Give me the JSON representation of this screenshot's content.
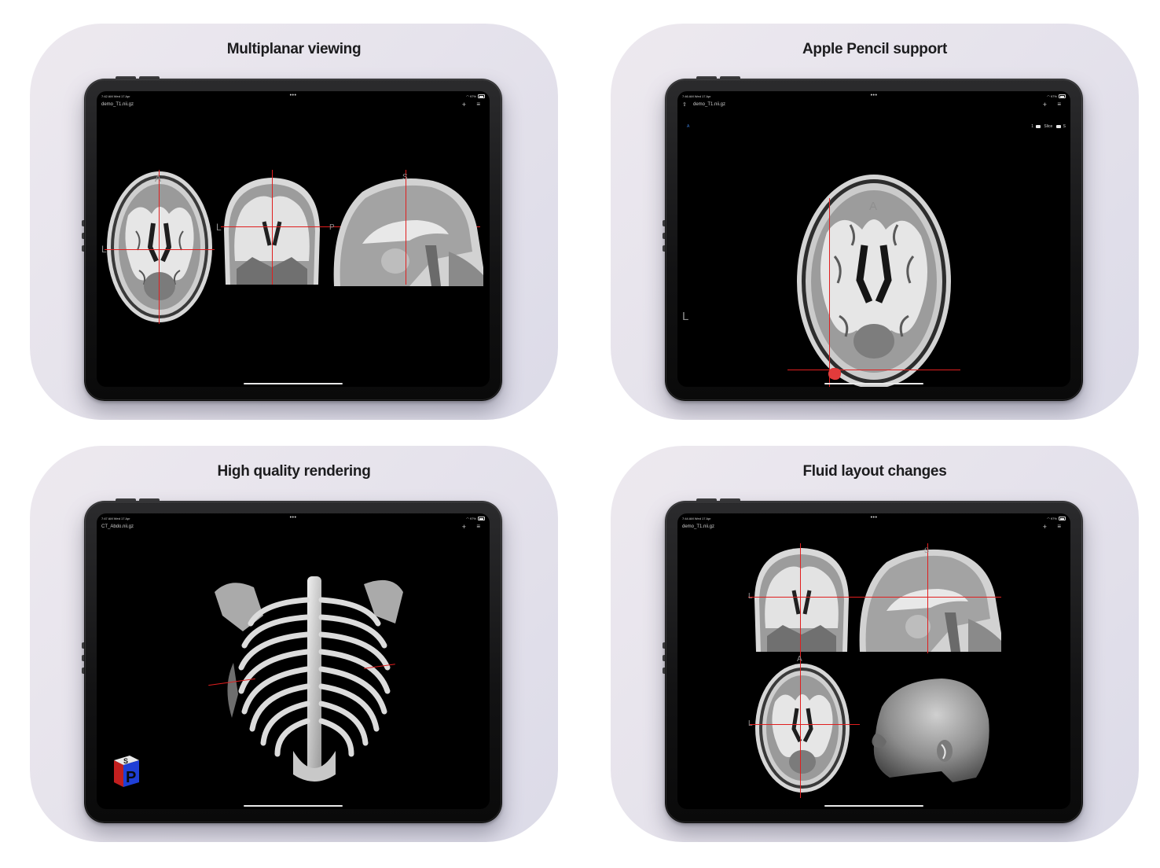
{
  "cards": [
    {
      "title": "Multiplanar viewing",
      "status": {
        "time": "7:42 AM  Wed 17 Apr",
        "dots": "•••",
        "battery": "97%"
      },
      "filename": "demo_T1.nii.gz",
      "plus_label": "+",
      "menu_label": "≡",
      "orient": {
        "axial_a": "A",
        "axial_l": "L",
        "coronal_l": "L",
        "sagittal_s": "S",
        "sagittal_p": "P"
      }
    },
    {
      "title": "Apple Pencil support",
      "status": {
        "time": "7:46 AM  Wed 17 Apr",
        "dots": "•••",
        "battery": "97%"
      },
      "filename": "demo_T1.nii.gz",
      "plus_label": "+",
      "menu_label": "≡",
      "share_label": "⇧",
      "toolbar": {
        "left": "A",
        "slice_label": "Slice",
        "s_label": "S",
        "one_label": "1"
      },
      "orient": {
        "a": "A",
        "l": "L"
      }
    },
    {
      "title": "High quality rendering",
      "status": {
        "time": "7:47 AM  Wed 17 Apr",
        "dots": "•••",
        "battery": "97%"
      },
      "filename": "CT_Abdo.nii.gz",
      "plus_label": "+",
      "menu_label": "≡",
      "cube": {
        "top": "S",
        "front": "P"
      }
    },
    {
      "title": "Fluid layout changes",
      "status": {
        "time": "7:44 AM  Wed 17 Apr",
        "dots": "•••",
        "battery": "97%"
      },
      "filename": "demo_T1.nii.gz",
      "plus_label": "+",
      "menu_label": "≡",
      "orient": {
        "axial_a": "A",
        "axial_l": "L",
        "coronal_l": "L",
        "sagittal_s": "S"
      }
    }
  ],
  "colors": {
    "crosshair": "#e01e1e",
    "annotation": "#e23b3b",
    "card_bg": "#e6e3ec",
    "device": "#121213"
  }
}
